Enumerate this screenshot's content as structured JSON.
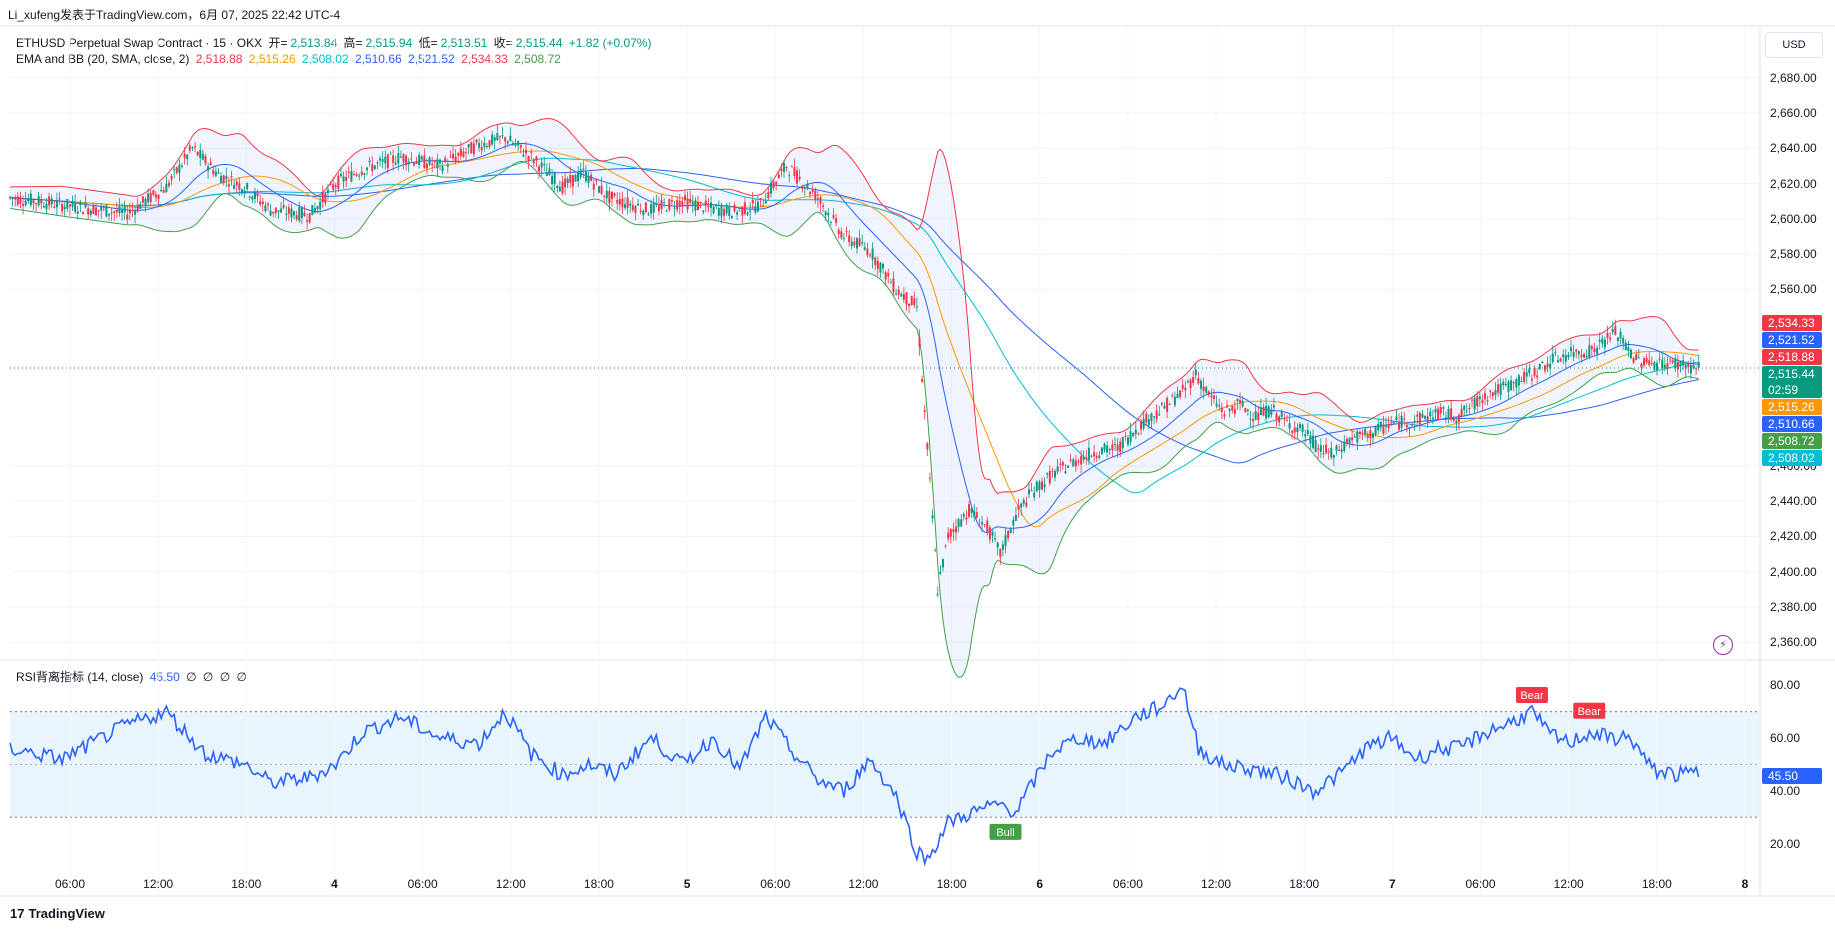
{
  "header": {
    "publisher": "Li_xufeng发表于TradingView.com，6月 07, 2025 22:42 UTC-4"
  },
  "legend": {
    "symbol": "ETHUSD Perpetual Swap Contract · 15 · OKX",
    "open_label": "开=",
    "open": "2,513.84",
    "high_label": "高=",
    "high": "2,515.94",
    "low_label": "低=",
    "low": "2,513.51",
    "close_label": "收=",
    "close": "2,515.44",
    "change": "+1.82 (+0.07%)",
    "ema_bb_label": "EMA and BB (20, SMA, close, 2)",
    "ema_bb_values": [
      "2,518.88",
      "2,515.26",
      "2,508.02",
      "2,510.66",
      "2,521.52",
      "2,534.33",
      "2,508.72"
    ],
    "rsi_label": "RSI背离指标 (14, close)",
    "rsi_value": "45.50",
    "rsi_icons": [
      "∅",
      "∅",
      "∅",
      "∅"
    ]
  },
  "currency_button": "USD",
  "price_axis": [
    "2,680.00",
    "2,660.00",
    "2,640.00",
    "2,620.00",
    "2,600.00",
    "2,580.00",
    "2,560.00",
    "2,460.00",
    "2,440.00",
    "2,420.00",
    "2,400.00",
    "2,380.00",
    "2,360.00"
  ],
  "rsi_axis": [
    "80.00",
    "60.00",
    "40.00",
    "20.00"
  ],
  "time_axis": [
    {
      "label": "06:00",
      "bold": false
    },
    {
      "label": "12:00",
      "bold": false
    },
    {
      "label": "18:00",
      "bold": false
    },
    {
      "label": "4",
      "bold": true
    },
    {
      "label": "06:00",
      "bold": false
    },
    {
      "label": "12:00",
      "bold": false
    },
    {
      "label": "18:00",
      "bold": false
    },
    {
      "label": "5",
      "bold": true
    },
    {
      "label": "06:00",
      "bold": false
    },
    {
      "label": "12:00",
      "bold": false
    },
    {
      "label": "18:00",
      "bold": false
    },
    {
      "label": "6",
      "bold": true
    },
    {
      "label": "06:00",
      "bold": false
    },
    {
      "label": "12:00",
      "bold": false
    },
    {
      "label": "18:00",
      "bold": false
    },
    {
      "label": "7",
      "bold": true
    },
    {
      "label": "06:00",
      "bold": false
    },
    {
      "label": "12:00",
      "bold": false
    },
    {
      "label": "18:00",
      "bold": false
    },
    {
      "label": "8",
      "bold": true
    }
  ],
  "price_tags": [
    {
      "value": "2,534.33",
      "color": "#f23645"
    },
    {
      "value": "2,521.52",
      "color": "#2962ff"
    },
    {
      "value": "2,518.88",
      "color": "#f23645"
    },
    {
      "value": "2,515.44",
      "color": "#089981",
      "sub": "02:59"
    },
    {
      "value": "2,515.26",
      "color": "#ff9800"
    },
    {
      "value": "2,510.66",
      "color": "#2962ff"
    },
    {
      "value": "2,508.72",
      "color": "#43a047"
    },
    {
      "value": "2,508.02",
      "color": "#00bcd4"
    }
  ],
  "rsi_tag": {
    "value": "45.50",
    "color": "#2962ff"
  },
  "signals": [
    {
      "label": "Bear",
      "color": "#f23645"
    },
    {
      "label": "Bear",
      "color": "#f23645"
    },
    {
      "label": "Bull",
      "color": "#43a047"
    }
  ],
  "footer": {
    "brand": "TradingView",
    "logo": "17"
  },
  "colors": {
    "up": "#089981",
    "down": "#f23645",
    "bb_upper": "#f23645",
    "bb_lower": "#43a047",
    "bb_basis": "#2962ff",
    "ema_orange": "#ff9800",
    "ema_cyan": "#00bcd4",
    "rsi_line": "#2962ff"
  },
  "chart_data": {
    "type": "line",
    "title": "ETHUSD Perpetual Swap Contract · 15 · OKX",
    "ylim": [
      2350,
      2690
    ],
    "price_path": [
      [
        0,
        2612
      ],
      [
        20,
        2608
      ],
      [
        45,
        2603
      ],
      [
        60,
        2618
      ],
      [
        70,
        2640
      ],
      [
        80,
        2625
      ],
      [
        90,
        2618
      ],
      [
        100,
        2605
      ],
      [
        115,
        2602
      ],
      [
        125,
        2620
      ],
      [
        135,
        2628
      ],
      [
        150,
        2635
      ],
      [
        165,
        2630
      ],
      [
        180,
        2642
      ],
      [
        190,
        2646
      ],
      [
        200,
        2635
      ],
      [
        212,
        2618
      ],
      [
        220,
        2626
      ],
      [
        230,
        2612
      ],
      [
        245,
        2605
      ],
      [
        258,
        2610
      ],
      [
        268,
        2606
      ],
      [
        278,
        2604
      ],
      [
        288,
        2608
      ],
      [
        298,
        2630
      ],
      [
        310,
        2612
      ],
      [
        320,
        2590
      ],
      [
        330,
        2582
      ],
      [
        340,
        2560
      ],
      [
        348,
        2550
      ],
      [
        352,
        2470
      ],
      [
        356,
        2390
      ],
      [
        360,
        2420
      ],
      [
        368,
        2435
      ],
      [
        375,
        2425
      ],
      [
        380,
        2410
      ],
      [
        386,
        2432
      ],
      [
        392,
        2445
      ],
      [
        400,
        2455
      ],
      [
        408,
        2462
      ],
      [
        416,
        2468
      ],
      [
        425,
        2470
      ],
      [
        435,
        2485
      ],
      [
        442,
        2492
      ],
      [
        450,
        2502
      ],
      [
        455,
        2512
      ],
      [
        460,
        2500
      ],
      [
        466,
        2490
      ],
      [
        472,
        2495
      ],
      [
        478,
        2488
      ],
      [
        484,
        2492
      ],
      [
        490,
        2484
      ],
      [
        496,
        2480
      ],
      [
        502,
        2470
      ],
      [
        508,
        2466
      ],
      [
        514,
        2475
      ],
      [
        522,
        2478
      ],
      [
        530,
        2484
      ],
      [
        540,
        2486
      ],
      [
        548,
        2490
      ],
      [
        556,
        2488
      ],
      [
        566,
        2500
      ],
      [
        576,
        2506
      ],
      [
        584,
        2512
      ],
      [
        592,
        2520
      ],
      [
        600,
        2524
      ],
      [
        608,
        2526
      ],
      [
        616,
        2536
      ],
      [
        624,
        2520
      ],
      [
        632,
        2518
      ],
      [
        640,
        2518
      ],
      [
        648,
        2515
      ]
    ],
    "rsi_path": [
      [
        0,
        56
      ],
      [
        20,
        52
      ],
      [
        45,
        65
      ],
      [
        60,
        70
      ],
      [
        75,
        54
      ],
      [
        90,
        50
      ],
      [
        100,
        43
      ],
      [
        115,
        45
      ],
      [
        125,
        50
      ],
      [
        135,
        62
      ],
      [
        150,
        68
      ],
      [
        165,
        60
      ],
      [
        180,
        58
      ],
      [
        190,
        70
      ],
      [
        200,
        54
      ],
      [
        212,
        46
      ],
      [
        222,
        50
      ],
      [
        232,
        46
      ],
      [
        246,
        60
      ],
      [
        258,
        50
      ],
      [
        270,
        60
      ],
      [
        280,
        48
      ],
      [
        290,
        68
      ],
      [
        300,
        55
      ],
      [
        310,
        44
      ],
      [
        320,
        40
      ],
      [
        330,
        52
      ],
      [
        340,
        38
      ],
      [
        348,
        17
      ],
      [
        352,
        14
      ],
      [
        360,
        28
      ],
      [
        370,
        32
      ],
      [
        380,
        35
      ],
      [
        386,
        32
      ],
      [
        392,
        42
      ],
      [
        400,
        55
      ],
      [
        410,
        60
      ],
      [
        420,
        58
      ],
      [
        432,
        68
      ],
      [
        442,
        72
      ],
      [
        450,
        80
      ],
      [
        456,
        56
      ],
      [
        465,
        50
      ],
      [
        478,
        48
      ],
      [
        490,
        45
      ],
      [
        500,
        40
      ],
      [
        510,
        46
      ],
      [
        520,
        56
      ],
      [
        530,
        60
      ],
      [
        540,
        52
      ],
      [
        548,
        56
      ],
      [
        556,
        56
      ],
      [
        566,
        62
      ],
      [
        576,
        66
      ],
      [
        584,
        70
      ],
      [
        590,
        62
      ],
      [
        598,
        58
      ],
      [
        606,
        62
      ],
      [
        614,
        60
      ],
      [
        622,
        60
      ],
      [
        630,
        48
      ],
      [
        640,
        46
      ],
      [
        648,
        47
      ]
    ],
    "signals": [
      {
        "type": "Bull",
        "x_index": 382,
        "rsi": 29
      },
      {
        "type": "Bear",
        "x_index": 584,
        "rsi": 71
      },
      {
        "type": "Bear",
        "x_index": 606,
        "rsi": 65
      }
    ],
    "rsi_band": [
      30,
      70
    ],
    "rsi_ylim": [
      10,
      85
    ]
  }
}
